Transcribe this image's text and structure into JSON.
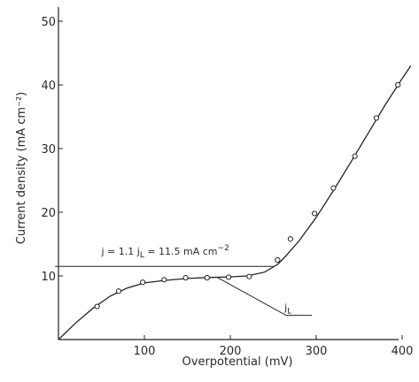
{
  "chart_data": {
    "type": "scatter",
    "xlabel": "Overpotential (mV)",
    "ylabel": "Current density (mA cm⁻²)",
    "xlim": [
      0,
      420
    ],
    "ylim": [
      0,
      52
    ],
    "x_ticks": [
      "100",
      "200",
      "300",
      "400"
    ],
    "y_ticks": [
      "10",
      "20",
      "30",
      "40",
      "50"
    ],
    "grid": false,
    "legend": "none",
    "series": [
      {
        "points": [
          [
            45,
            5.2
          ],
          [
            70,
            7.6
          ],
          [
            98,
            9.0
          ],
          [
            123,
            9.4
          ],
          [
            148,
            9.7
          ],
          [
            173,
            9.7
          ],
          [
            198,
            9.8
          ],
          [
            222,
            9.9
          ],
          [
            255,
            12.5
          ],
          [
            270,
            15.8
          ],
          [
            298,
            19.8
          ],
          [
            320,
            23.8
          ],
          [
            345,
            28.8
          ],
          [
            370,
            34.8
          ],
          [
            395,
            40.0
          ]
        ],
        "fit": [
          [
            0,
            0
          ],
          [
            20,
            2.6
          ],
          [
            40,
            4.9
          ],
          [
            60,
            6.8
          ],
          [
            80,
            8.1
          ],
          [
            100,
            8.9
          ],
          [
            125,
            9.3
          ],
          [
            150,
            9.6
          ],
          [
            175,
            9.75
          ],
          [
            200,
            9.85
          ],
          [
            220,
            10.0
          ],
          [
            240,
            10.6
          ],
          [
            255,
            11.8
          ],
          [
            265,
            13.2
          ],
          [
            280,
            15.5
          ],
          [
            300,
            19.2
          ],
          [
            320,
            23.4
          ],
          [
            340,
            27.8
          ],
          [
            360,
            32.3
          ],
          [
            380,
            36.8
          ],
          [
            400,
            41.0
          ],
          [
            410,
            43.0
          ]
        ]
      }
    ],
    "annotations": {
      "j_line": {
        "label": "j = 1.1 j",
        "sub": "L",
        "label_rest": " = 11.5 mA cm",
        "sup": "−2",
        "value": 11.5,
        "x_start": -4,
        "x_end": 250
      },
      "jL": {
        "label": "j",
        "sub": "L",
        "at_x": 185,
        "at_y": 9.75,
        "end_x": 295,
        "end_y": 3.8
      }
    }
  }
}
